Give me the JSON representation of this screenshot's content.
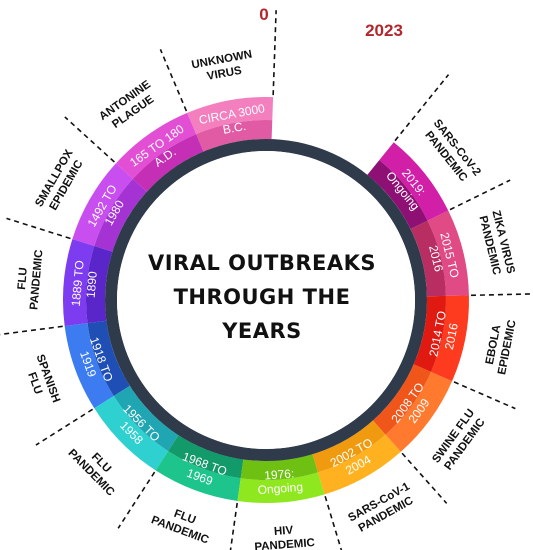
{
  "center_title": [
    "VIRAL OUTBREAKS",
    "THROUGH THE",
    "YEARS"
  ],
  "start_label": "0",
  "end_label": "2023",
  "segments": [
    {
      "name": "unknown-virus",
      "outer": [
        "UNKNOWN",
        "VIRUS"
      ],
      "dates": [
        "CIRCA 3000",
        "B.C."
      ],
      "outer_color": "#f37fbf",
      "inner_color": "#e05aa4"
    },
    {
      "name": "antonine-plague",
      "outer": [
        "ANTONINE",
        "PLAGUE"
      ],
      "dates": [
        "165 TO 180",
        "A.D."
      ],
      "outer_color": "#e34fd4",
      "inner_color": "#c42fb5"
    },
    {
      "name": "smallpox",
      "outer": [
        "SMALLPOX",
        "EPIDEMIC"
      ],
      "dates": [
        "1492 TO",
        "1980"
      ],
      "outer_color": "#c84ef0",
      "inner_color": "#a533d4"
    },
    {
      "name": "flu-1889",
      "outer": [
        "FLU",
        "PANDEMIC"
      ],
      "dates": [
        "1889 TO",
        "1890"
      ],
      "outer_color": "#7d3cf0",
      "inner_color": "#5a25c9"
    },
    {
      "name": "spanish-flu",
      "outer": [
        "SPANISH",
        "FLU"
      ],
      "dates": [
        "1918 TO",
        "1919"
      ],
      "outer_color": "#3c7cf0",
      "inner_color": "#1f4fb5"
    },
    {
      "name": "flu-1956",
      "outer": [
        "FLU",
        "PANDEMIC"
      ],
      "dates": [
        "1956 TO",
        "1958"
      ],
      "outer_color": "#2fd0d0",
      "inner_color": "#1fa6b2"
    },
    {
      "name": "flu-1968",
      "outer": [
        "FLU",
        "PANDEMIC"
      ],
      "dates": [
        "1968 TO",
        "1969"
      ],
      "outer_color": "#1dc48c",
      "inner_color": "#139a6a"
    },
    {
      "name": "hiv",
      "outer": [
        "HIV",
        "PANDEMIC"
      ],
      "dates": [
        "1976:",
        "Ongoing"
      ],
      "outer_color": "#8fe81f",
      "inner_color": "#6ec012"
    },
    {
      "name": "sars-cov-1",
      "outer": [
        "SARS-CoV-1",
        "PANDEMIC"
      ],
      "dates": [
        "2002 TO",
        "2004"
      ],
      "outer_color": "#ffb11f",
      "inner_color": "#f09a10"
    },
    {
      "name": "swine-flu",
      "outer": [
        "SWINE FLU",
        "PANDEMIC"
      ],
      "dates": [
        "2008 TO",
        "2009"
      ],
      "outer_color": "#ff7a2e",
      "inner_color": "#f0551a"
    },
    {
      "name": "ebola",
      "outer": [
        "EBOLA",
        "EPIDEMIC"
      ],
      "dates": [
        "2014 TO",
        "2016"
      ],
      "outer_color": "#ff3b1f",
      "inner_color": "#e01a10"
    },
    {
      "name": "zika",
      "outer": [
        "ZIKA VIRUS",
        "PANDEMIC"
      ],
      "dates": [
        "2015 TO",
        "2016"
      ],
      "outer_color": "#e04a85",
      "inner_color": "#b82e63"
    },
    {
      "name": "sars-cov-2",
      "outer": [
        "SARS-CoV-2",
        "PANDEMIC"
      ],
      "dates": [
        "2019:",
        "Ongoing"
      ],
      "outer_color": "#d11fa8",
      "inner_color": "#8e1075"
    }
  ],
  "colors": {
    "inner_ring": "#2f3a4a",
    "center_fill": "#ffffff",
    "divider": "#111111"
  }
}
